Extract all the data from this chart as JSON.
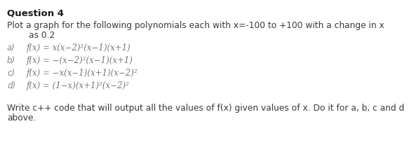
{
  "title": "Question 4",
  "body_line1": "Plot a graph for the following polynomials each with x=-100 to +100 with a change in x",
  "body_line2": "        as 0.2",
  "item_labels": [
    "a)",
    "b)",
    "c)",
    "d)"
  ],
  "item_formulas": [
    "f(x) = x(x−2)²(x−1)(x+1)",
    "f(x) = −(x−2)²(x−1)(x+1)",
    "f(x) = −x(x−1)(x+1)(x−2)²",
    "f(x) = (1−x)(x+1)²(x−2)²"
  ],
  "footer_line1": "Write c++ code that will output all the values of f(x) given values of x. Do it for a, b, c and d",
  "footer_line2": "above.",
  "bg_color": "#ffffff",
  "title_color": "#1a1a1a",
  "body_color": "#3a3a3a",
  "item_label_color": "#888888",
  "item_formula_color": "#777777",
  "footer_color": "#3a3a3a",
  "title_fontsize": 9.5,
  "body_fontsize": 8.8,
  "item_label_fontsize": 8.5,
  "item_formula_fontsize": 8.5,
  "footer_fontsize": 8.8,
  "fig_width": 5.83,
  "fig_height": 2.28,
  "dpi": 100
}
